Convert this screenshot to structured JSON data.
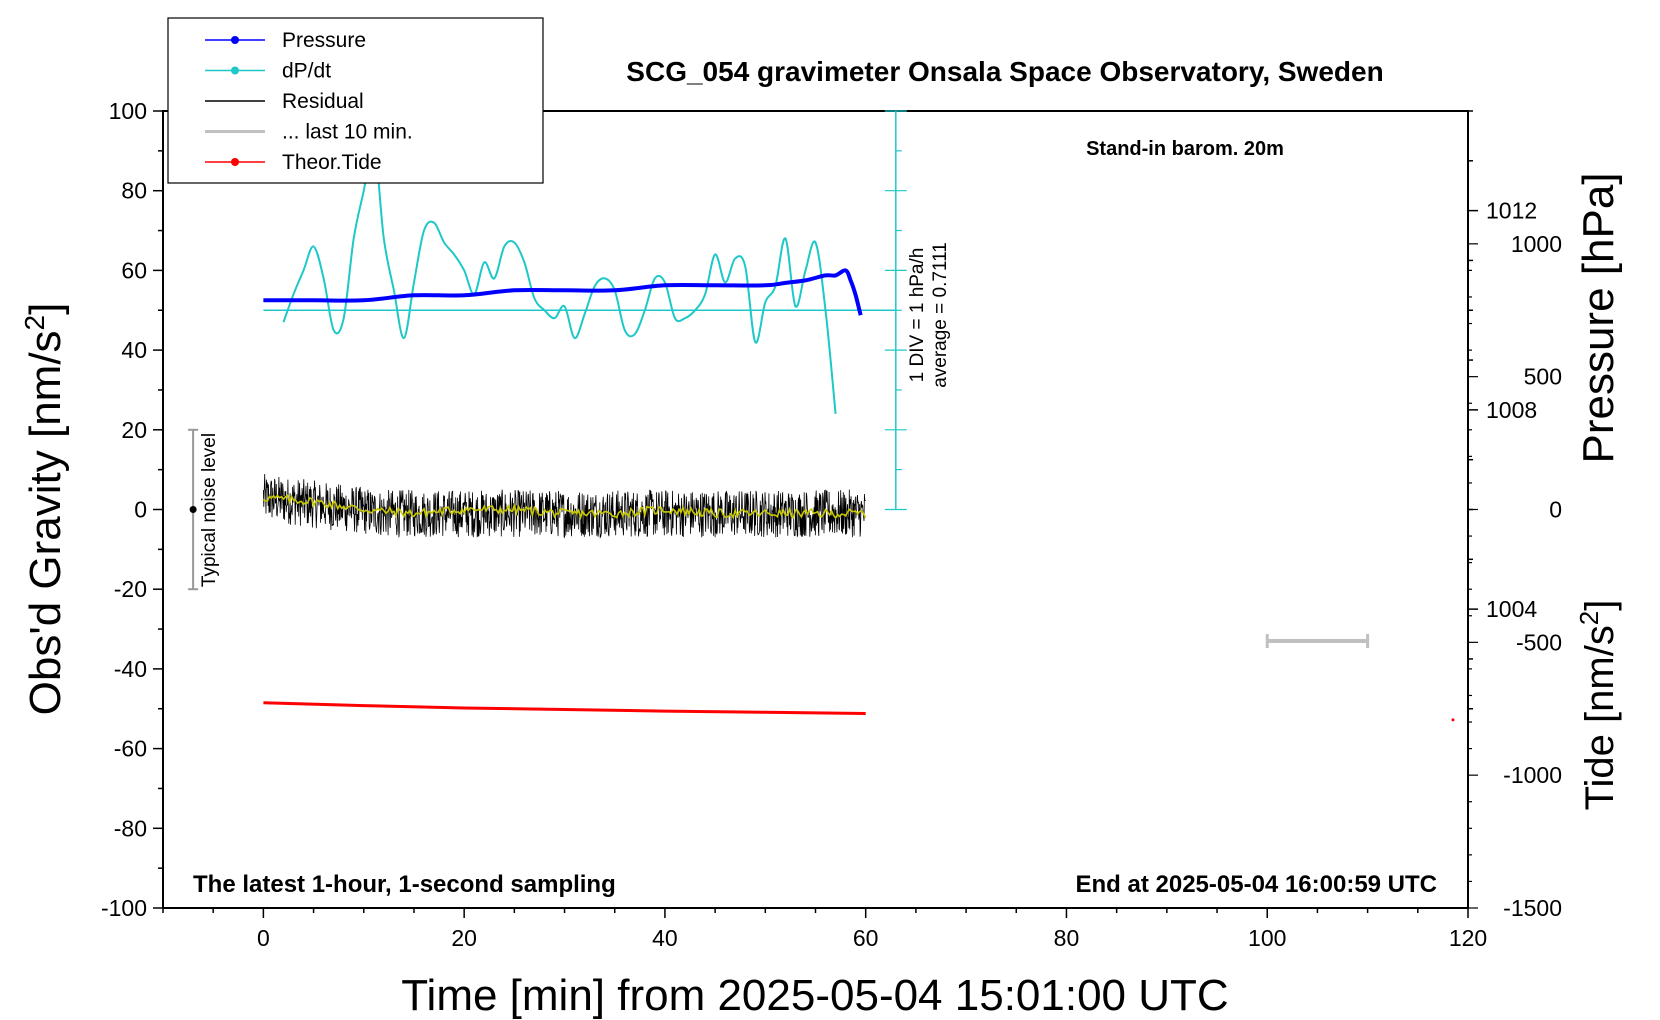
{
  "title": "SCG_054 gravimeter Onsala Space Observatory, Sweden",
  "subtitle_left": "The latest 1-hour, 1-second sampling",
  "subtitle_right": "End at 2025-05-04 16:00:59 UTC",
  "annotation_barom": "Stand-in barom. 20m",
  "xlabel": "Time [min] from 2025-05-04 15:01:00 UTC",
  "ylabel_left": "Obs'd Gravity [nm/s",
  "ylabel_left_sup": "2",
  "ylabel_left_end": "]",
  "ylabel_right_top": "Pressure [hPa]",
  "ylabel_right_bottom": "Tide [nm/s",
  "ylabel_right_bottom_sup": "2",
  "ylabel_right_bottom_end": "]",
  "dpdt_note_line1": "1 DIV = 1 hPa/h",
  "dpdt_note_line2": "average = 0.7111",
  "noise_label": "Typical noise level",
  "legend": [
    {
      "name": "Pressure",
      "color": "#0000ff",
      "marker": true
    },
    {
      "name": "dP/dt",
      "color": "#1ec8c8",
      "marker": true
    },
    {
      "name": "Residual",
      "color": "#000000",
      "marker": false
    },
    {
      "name": "... last 10 min.",
      "color": "#c0c0c0",
      "marker": false
    },
    {
      "name": "Theor.Tide",
      "color": "#ff0000",
      "marker": true
    }
  ],
  "colors": {
    "pressure": "#0000ff",
    "dpdt": "#1ec8c8",
    "residual": "#000000",
    "residual_smooth": "#c8c800",
    "last10": "#c0c0c0",
    "tide": "#ff0000"
  },
  "chart_data": {
    "type": "line",
    "xlim": [
      -10,
      120
    ],
    "ylim_gravity": [
      -100,
      100
    ],
    "ylim_pressure_hpa": [
      998,
      1014
    ],
    "ylim_tide": [
      -1500,
      1500
    ],
    "x_ticks": [
      0,
      20,
      40,
      60,
      80,
      100,
      120
    ],
    "y_ticks_gravity": [
      100,
      80,
      60,
      40,
      20,
      0,
      -20,
      -40,
      -60,
      -80,
      -100
    ],
    "y_ticks_pressure": [
      1012,
      1008,
      1004
    ],
    "y_ticks_tide": [
      1000,
      500,
      0,
      -500,
      -1000,
      -1500
    ],
    "series": [
      {
        "name": "Pressure",
        "unit": "hPa",
        "x": [
          0,
          5,
          10,
          15,
          20,
          25,
          30,
          35,
          40,
          45,
          50,
          52,
          54,
          56,
          57,
          58,
          58.5,
          59,
          59.5
        ],
        "y": [
          1010.2,
          1010.2,
          1010.2,
          1010.3,
          1010.3,
          1010.4,
          1010.4,
          1010.4,
          1010.5,
          1010.5,
          1010.5,
          1010.55,
          1010.6,
          1010.7,
          1010.7,
          1010.8,
          1010.6,
          1010.3,
          1009.9
        ]
      },
      {
        "name": "dP/dt",
        "unit": "nm/s2-axis",
        "x": [
          2,
          3,
          4,
          5,
          6,
          7,
          8,
          9,
          10,
          11,
          12,
          13,
          14,
          15,
          16,
          17,
          18,
          19,
          20,
          21,
          22,
          23,
          24,
          25,
          26,
          27,
          28,
          29,
          30,
          31,
          32,
          33,
          34,
          35,
          36,
          37,
          38,
          39,
          40,
          41,
          42,
          43,
          44,
          45,
          46,
          47,
          48,
          49,
          50,
          51,
          52,
          53,
          54,
          55,
          56,
          57
        ],
        "y": [
          47,
          54,
          60,
          66,
          58,
          45,
          48,
          68,
          80,
          92,
          68,
          55,
          43,
          57,
          70,
          72,
          67,
          64,
          60,
          54,
          62,
          58,
          66,
          67,
          62,
          53,
          50,
          48,
          51,
          43,
          49,
          56,
          58,
          55,
          45,
          44,
          50,
          58,
          57,
          48,
          48,
          50,
          54,
          64,
          57,
          63,
          61,
          42,
          52,
          56,
          68,
          51,
          60,
          67,
          50,
          24
        ]
      },
      {
        "name": "Residual",
        "unit": "nm/s2",
        "x_range": [
          0,
          60
        ],
        "level": 1,
        "noise_amplitude": 6
      },
      {
        "name": "Residual smoothed",
        "unit": "nm/s2",
        "x": [
          0,
          5,
          10,
          15,
          20,
          25,
          30,
          35,
          40,
          45,
          50,
          55,
          60
        ],
        "y": [
          3,
          2,
          0,
          -1,
          0,
          0,
          -1,
          -1,
          0,
          -1,
          -1,
          -1,
          -1
        ]
      },
      {
        "name": "... last 10 min.",
        "unit": "nm/s2-axis",
        "x": [
          100,
          110
        ],
        "y": [
          -33,
          -33
        ]
      },
      {
        "name": "Theor.Tide",
        "unit": "nm/s2",
        "x": [
          0,
          10,
          20,
          30,
          40,
          50,
          60,
          118.5
        ],
        "y": [
          -48.5,
          -49.2,
          -49.8,
          -50.2,
          -50.6,
          -50.9,
          -51.2,
          -51.3
        ]
      }
    ],
    "dpdt_reference_line_y": 50,
    "noise_bar": {
      "x": -7,
      "center": 0,
      "low": -20,
      "high": 20
    }
  }
}
